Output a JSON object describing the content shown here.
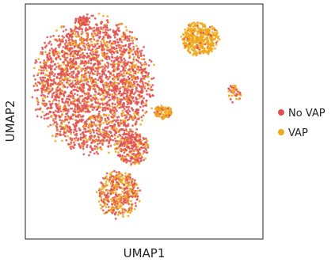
{
  "chart_data": {
    "type": "scatter",
    "title": "",
    "xlabel": "UMAP1",
    "ylabel": "UMAP2",
    "xlim": [
      0,
      100
    ],
    "ylim": [
      0,
      100
    ],
    "grid": false,
    "ticks": false,
    "legend_placement": "right",
    "series": [
      {
        "name": "No VAP",
        "color": "#e05050"
      },
      {
        "name": "VAP",
        "color": "#f0a81a"
      }
    ],
    "clusters": [
      {
        "cx": 28,
        "cy": 66,
        "rx": 25,
        "ry": 29,
        "n": 2600,
        "vap_fraction": 0.22
      },
      {
        "cx": 23,
        "cy": 94,
        "rx": 3,
        "ry": 2,
        "n": 45,
        "vap_fraction": 0.1
      },
      {
        "cx": 45,
        "cy": 38,
        "rx": 7,
        "ry": 7,
        "n": 260,
        "vap_fraction": 0.25
      },
      {
        "cx": 58,
        "cy": 54,
        "rx": 4,
        "ry": 3,
        "n": 110,
        "vap_fraction": 0.75
      },
      {
        "cx": 39,
        "cy": 18,
        "rx": 9,
        "ry": 10,
        "n": 420,
        "vap_fraction": 0.45
      },
      {
        "cx": 74,
        "cy": 86,
        "rx": 8,
        "ry": 7,
        "n": 420,
        "vap_fraction": 0.92
      },
      {
        "cx": 89,
        "cy": 62,
        "rx": 3,
        "ry": 4,
        "n": 45,
        "vap_fraction": 0.55
      }
    ]
  }
}
